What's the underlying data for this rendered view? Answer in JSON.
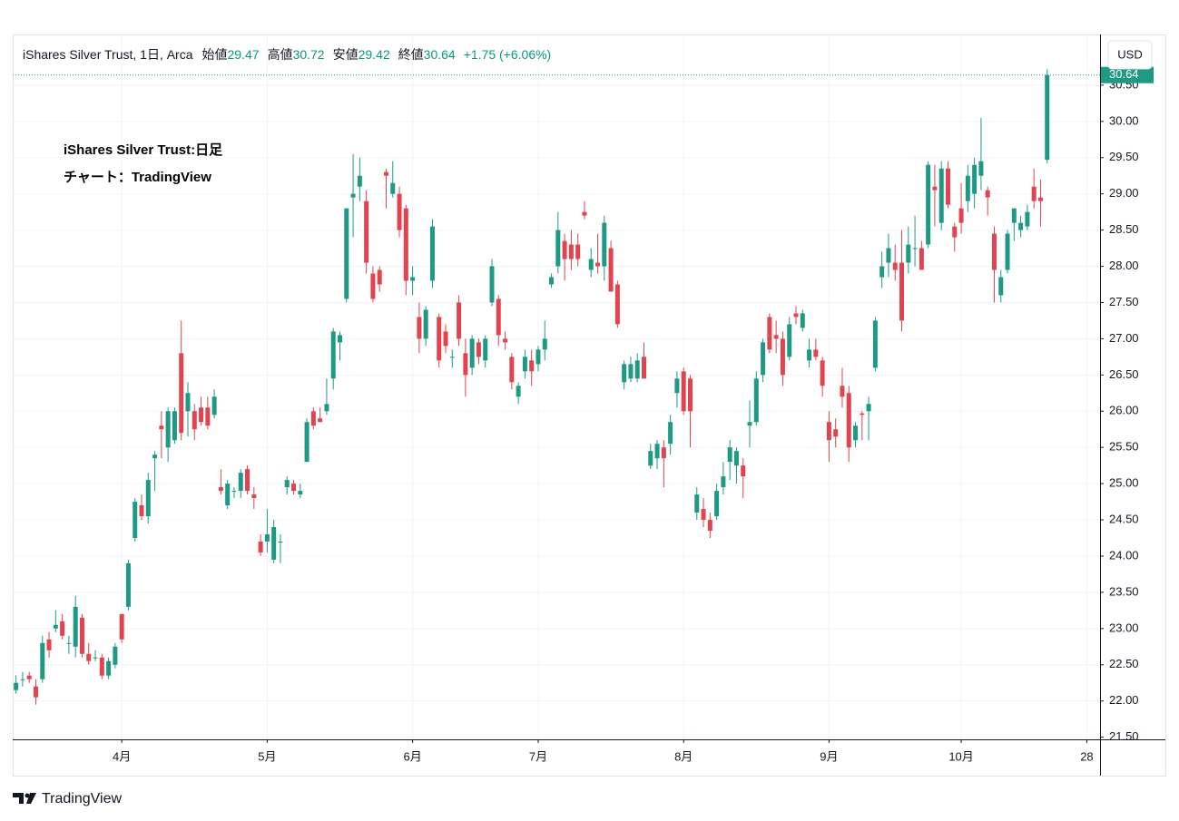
{
  "header": {
    "symbol": "iShares Silver Trust, 1日, Arca",
    "labels": [
      "始値",
      "高値",
      "安値",
      "終値"
    ],
    "change": "+1.75 (+6.06%)"
  },
  "annotations": [
    "iShares Silver Trust:日足",
    "チャート：TradingView"
  ],
  "ui": {
    "currency": "USD"
  },
  "footer": {
    "brand": "TradingView"
  },
  "chart_data": {
    "type": "candlestick",
    "up_color": "#1e9a84",
    "down_color": "#e2434f",
    "grid": true,
    "xlim": [
      -0.5,
      164
    ],
    "xticks": [
      {
        "value": 16,
        "label": "4月"
      },
      {
        "value": 38,
        "label": "5月"
      },
      {
        "value": 60,
        "label": "6月"
      },
      {
        "value": 79,
        "label": "7月"
      },
      {
        "value": 101,
        "label": "8月"
      },
      {
        "value": 123,
        "label": "9月"
      },
      {
        "value": 143,
        "label": "10月"
      },
      {
        "value": 162,
        "label": "28"
      }
    ],
    "ylim": [
      21.47,
      31.2
    ],
    "yticks": [
      {
        "value": 21.5,
        "label": "21.50"
      },
      {
        "value": 22,
        "label": "22.00"
      },
      {
        "value": 22.5,
        "label": "22.50"
      },
      {
        "value": 23,
        "label": "23.00"
      },
      {
        "value": 23.5,
        "label": "23.50"
      },
      {
        "value": 24,
        "label": "24.00"
      },
      {
        "value": 24.5,
        "label": "24.50"
      },
      {
        "value": 25,
        "label": "25.00"
      },
      {
        "value": 25.5,
        "label": "25.50"
      },
      {
        "value": 26,
        "label": "26.00"
      },
      {
        "value": 26.5,
        "label": "26.50"
      },
      {
        "value": 27,
        "label": "27.00"
      },
      {
        "value": 27.5,
        "label": "27.50"
      },
      {
        "value": 28,
        "label": "28.00"
      },
      {
        "value": 28.5,
        "label": "28.50"
      },
      {
        "value": 29,
        "label": "29.00"
      },
      {
        "value": 29.5,
        "label": "29.50"
      },
      {
        "value": 30,
        "label": "30.00"
      },
      {
        "value": 30.5,
        "label": "30.50"
      }
    ],
    "open": [
      22.15,
      22.3,
      22.35,
      22.2,
      22.3,
      22.85,
      23.0,
      23.1,
      22.8,
      22.75,
      23.15,
      22.65,
      22.6,
      22.6,
      22.35,
      22.5,
      23.2,
      23.3,
      24.25,
      24.7,
      24.55,
      25.35,
      25.8,
      25.5,
      25.6,
      26.8,
      26.0,
      26.0,
      26.05,
      26.05,
      25.95,
      24.95,
      24.7,
      24.9,
      24.9,
      25.2,
      24.85,
      24.2,
      24.2,
      23.95,
      24.2,
      24.95,
      25.0,
      24.85,
      25.3,
      26.0,
      25.9,
      26.0,
      26.45,
      26.95,
      27.55,
      28.95,
      29.1,
      28.9,
      27.9,
      27.95,
      29.3,
      29.0,
      29.0,
      28.8,
      27.8,
      27.3,
      27.0,
      27.8,
      27.3,
      27.1,
      26.75,
      27.5,
      26.8,
      26.6,
      26.95,
      26.7,
      27.5,
      27.55,
      27.0,
      26.75,
      26.2,
      26.55,
      26.7,
      26.65,
      26.85,
      27.75,
      28.0,
      28.35,
      28.3,
      28.3,
      28.75,
      27.95,
      28.05,
      28.0,
      28.25,
      27.75,
      26.4,
      26.45,
      26.45,
      26.75,
      25.25,
      25.35,
      25.5,
      25.55,
      26.25,
      26.55,
      26.45,
      24.6,
      24.65,
      24.5,
      24.55,
      24.95,
      25.3,
      25.25,
      25.25,
      25.8,
      25.85,
      26.5,
      27.3,
      27.05,
      27.0,
      26.75,
      27.35,
      27.15,
      26.7,
      26.85,
      26.7,
      25.85,
      25.75,
      26.35,
      26.25,
      25.6,
      25.97,
      26.0,
      26.6,
      27.85,
      28.05,
      28.05,
      28.05,
      28.05,
      28.25,
      28.25,
      28.3,
      29.1,
      28.6,
      29.35,
      28.55,
      28.8,
      28.9,
      29.0,
      29.25,
      29.05,
      28.45,
      27.6,
      27.95,
      28.6,
      28.5,
      28.55,
      29.1,
      28.95,
      29.47
    ],
    "high": [
      22.35,
      22.4,
      22.4,
      22.3,
      22.9,
      22.95,
      23.25,
      23.2,
      22.9,
      23.45,
      23.2,
      22.8,
      22.7,
      22.65,
      22.6,
      22.8,
      23.2,
      23.95,
      24.8,
      24.85,
      25.15,
      25.45,
      26.0,
      26.05,
      26.05,
      27.25,
      26.4,
      26.1,
      26.2,
      26.2,
      26.3,
      25.2,
      25.05,
      24.95,
      25.2,
      25.25,
      24.95,
      24.3,
      24.65,
      24.5,
      24.3,
      25.1,
      25.05,
      25.0,
      25.9,
      26.05,
      26.05,
      26.45,
      27.15,
      27.1,
      28.8,
      29.55,
      29.5,
      29.05,
      28.0,
      28.0,
      29.35,
      29.45,
      29.1,
      28.85,
      28.0,
      27.5,
      27.45,
      28.65,
      27.35,
      27.2,
      26.85,
      27.6,
      27.0,
      27.05,
      27.0,
      27.05,
      28.1,
      27.6,
      27.1,
      26.8,
      26.4,
      26.85,
      26.85,
      26.9,
      27.25,
      27.9,
      28.75,
      28.45,
      28.5,
      28.45,
      28.9,
      28.25,
      28.45,
      28.7,
      28.35,
      27.8,
      26.7,
      26.75,
      26.8,
      26.95,
      25.55,
      25.6,
      25.6,
      25.95,
      26.55,
      26.6,
      26.5,
      24.95,
      24.8,
      24.6,
      25.0,
      25.3,
      25.6,
      25.5,
      25.35,
      26.15,
      26.55,
      27.0,
      27.35,
      27.25,
      27.1,
      27.3,
      27.45,
      27.4,
      27.0,
      27.0,
      26.75,
      26.0,
      25.9,
      26.6,
      26.35,
      25.85,
      26.0,
      26.2,
      27.3,
      28.2,
      28.45,
      28.3,
      28.5,
      28.55,
      28.7,
      28.35,
      29.45,
      29.4,
      29.45,
      29.45,
      28.6,
      29.15,
      29.4,
      29.5,
      30.05,
      29.1,
      28.55,
      27.95,
      28.5,
      28.8,
      28.7,
      28.85,
      29.35,
      29.2,
      30.72
    ],
    "low": [
      22.1,
      22.2,
      22.25,
      21.95,
      22.25,
      22.6,
      22.95,
      22.85,
      22.65,
      22.6,
      22.6,
      22.5,
      22.55,
      22.3,
      22.3,
      22.45,
      22.8,
      23.25,
      24.2,
      24.5,
      24.45,
      24.9,
      25.35,
      25.3,
      25.55,
      25.6,
      25.65,
      25.6,
      25.8,
      25.75,
      25.9,
      24.85,
      24.65,
      24.8,
      24.8,
      24.85,
      24.65,
      24.0,
      24.05,
      23.9,
      23.9,
      24.85,
      24.85,
      24.8,
      25.3,
      25.75,
      25.85,
      25.95,
      26.3,
      26.7,
      27.5,
      28.4,
      28.9,
      27.9,
      27.5,
      27.65,
      28.8,
      28.95,
      28.4,
      27.6,
      27.6,
      26.8,
      26.9,
      27.7,
      26.6,
      26.8,
      26.6,
      26.9,
      26.2,
      26.5,
      26.65,
      26.6,
      27.45,
      26.9,
      26.85,
      26.3,
      26.1,
      26.45,
      26.35,
      26.55,
      26.7,
      27.7,
      27.9,
      27.8,
      27.95,
      28.0,
      28.65,
      27.85,
      27.9,
      27.8,
      27.65,
      27.15,
      26.3,
      26.4,
      26.4,
      26.45,
      25.2,
      25.2,
      24.95,
      25.4,
      26.05,
      25.95,
      25.5,
      24.5,
      24.4,
      24.25,
      24.5,
      24.85,
      25.05,
      25.0,
      24.8,
      25.5,
      25.8,
      26.4,
      26.8,
      26.8,
      26.35,
      26.7,
      27.2,
      27.1,
      26.6,
      26.7,
      26.2,
      25.3,
      25.5,
      26.05,
      25.3,
      25.5,
      25.6,
      25.6,
      26.55,
      27.7,
      27.85,
      27.8,
      27.1,
      27.9,
      28.0,
      27.95,
      28.25,
      28.55,
      28.5,
      28.8,
      28.2,
      28.45,
      28.75,
      28.8,
      29.05,
      28.7,
      27.5,
      27.5,
      27.9,
      28.35,
      28.4,
      28.5,
      28.8,
      28.55,
      29.42
    ],
    "close": [
      22.25,
      22.3,
      22.3,
      22.05,
      22.8,
      22.7,
      23.05,
      22.9,
      22.8,
      23.3,
      22.65,
      22.55,
      22.6,
      22.35,
      22.55,
      22.75,
      22.85,
      23.9,
      24.75,
      24.55,
      25.05,
      25.4,
      25.75,
      26.0,
      26.0,
      25.7,
      26.25,
      25.75,
      25.85,
      25.8,
      26.2,
      24.9,
      25.0,
      24.9,
      25.15,
      24.9,
      24.8,
      24.05,
      24.3,
      24.4,
      24.2,
      25.05,
      24.9,
      24.9,
      25.85,
      25.8,
      25.85,
      26.1,
      27.1,
      27.05,
      28.8,
      29.0,
      29.25,
      28.05,
      27.55,
      27.75,
      29.25,
      29.15,
      28.5,
      27.8,
      27.85,
      27.0,
      27.4,
      28.55,
      26.7,
      26.9,
      26.75,
      27.0,
      26.5,
      27.0,
      26.75,
      27.0,
      28.0,
      27.05,
      26.95,
      26.4,
      26.35,
      26.75,
      26.55,
      26.85,
      27.0,
      27.85,
      28.5,
      28.1,
      28.1,
      28.1,
      28.7,
      28.1,
      28.0,
      28.6,
      27.65,
      27.2,
      26.65,
      26.65,
      26.7,
      26.45,
      25.45,
      25.55,
      25.35,
      25.85,
      26.45,
      26.0,
      26.0,
      24.85,
      24.5,
      24.35,
      24.9,
      25.1,
      25.5,
      25.45,
      25.1,
      25.85,
      26.45,
      26.95,
      26.85,
      27.0,
      26.5,
      27.2,
      27.3,
      27.35,
      26.85,
      26.75,
      26.35,
      25.6,
      25.65,
      26.2,
      25.5,
      25.8,
      25.95,
      26.1,
      27.25,
      28.0,
      28.25,
      27.95,
      27.25,
      28.3,
      28.25,
      27.95,
      29.4,
      29.05,
      29.35,
      28.85,
      28.4,
      28.6,
      29.25,
      29.4,
      29.45,
      28.95,
      27.95,
      27.85,
      28.45,
      28.8,
      28.6,
      28.75,
      28.9,
      28.9,
      30.64
    ]
  }
}
